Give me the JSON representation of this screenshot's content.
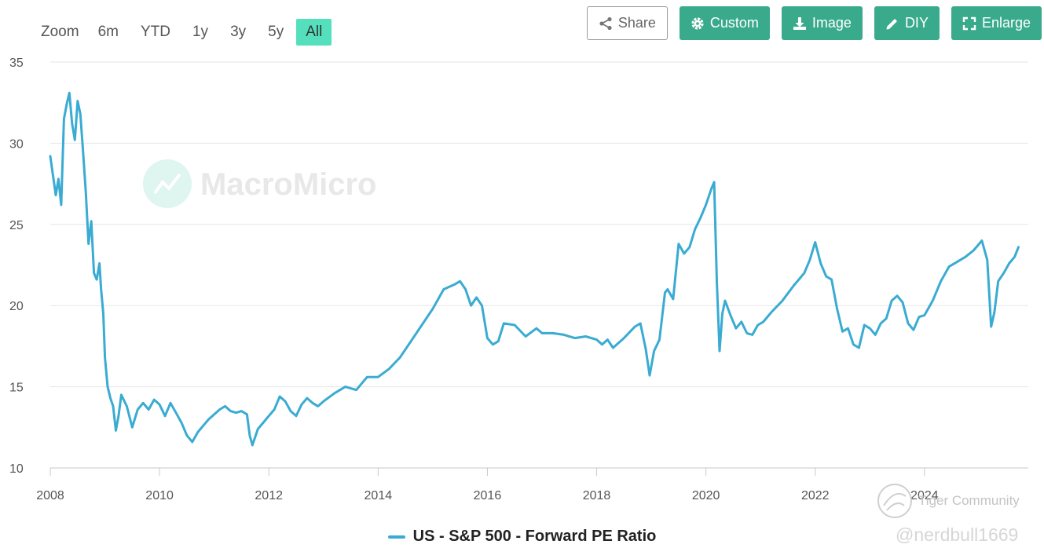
{
  "zoom": {
    "label": "Zoom",
    "buttons": [
      "6m",
      "YTD",
      "1y",
      "3y",
      "5y",
      "All"
    ],
    "active": "All"
  },
  "toolbar": {
    "share": "Share",
    "custom": "Custom",
    "image": "Image",
    "diy": "DIY",
    "enlarge": "Enlarge"
  },
  "watermark": {
    "brand": "MacroMicro",
    "community": "Tiger Community",
    "user": "@nerdbull1669"
  },
  "colors": {
    "line": "#3aabd2",
    "accent": "#55e0bd",
    "button": "#3aaa8c",
    "grid": "#e6e6e6"
  },
  "chart_data": {
    "type": "line",
    "title": "",
    "xlabel": "",
    "ylabel": "",
    "xlim": [
      2008.0,
      2025.9
    ],
    "ylim": [
      10,
      35
    ],
    "yticks": [
      10,
      15,
      20,
      25,
      30,
      35
    ],
    "xticks": [
      2008,
      2010,
      2012,
      2014,
      2016,
      2018,
      2020,
      2022,
      2024
    ],
    "grid": true,
    "legend_position": "bottom",
    "series": [
      {
        "name": "US - S&P 500 - Forward PE Ratio",
        "x": [
          2008.0,
          2008.05,
          2008.1,
          2008.15,
          2008.2,
          2008.25,
          2008.3,
          2008.35,
          2008.4,
          2008.45,
          2008.5,
          2008.55,
          2008.6,
          2008.65,
          2008.7,
          2008.75,
          2008.8,
          2008.85,
          2008.9,
          2008.93,
          2008.97,
          2009.0,
          2009.05,
          2009.1,
          2009.15,
          2009.2,
          2009.25,
          2009.3,
          2009.4,
          2009.5,
          2009.6,
          2009.7,
          2009.8,
          2009.9,
          2010.0,
          2010.1,
          2010.2,
          2010.3,
          2010.4,
          2010.5,
          2010.6,
          2010.7,
          2010.8,
          2010.9,
          2011.0,
          2011.1,
          2011.2,
          2011.3,
          2011.4,
          2011.5,
          2011.6,
          2011.65,
          2011.7,
          2011.8,
          2011.9,
          2012.0,
          2012.1,
          2012.2,
          2012.3,
          2012.4,
          2012.5,
          2012.6,
          2012.7,
          2012.8,
          2012.9,
          2013.0,
          2013.2,
          2013.4,
          2013.6,
          2013.8,
          2014.0,
          2014.2,
          2014.4,
          2014.6,
          2014.8,
          2015.0,
          2015.2,
          2015.4,
          2015.5,
          2015.6,
          2015.7,
          2015.8,
          2015.9,
          2016.0,
          2016.1,
          2016.2,
          2016.3,
          2016.5,
          2016.7,
          2016.9,
          2017.0,
          2017.2,
          2017.4,
          2017.6,
          2017.8,
          2018.0,
          2018.1,
          2018.2,
          2018.3,
          2018.5,
          2018.7,
          2018.8,
          2018.9,
          2018.97,
          2019.05,
          2019.15,
          2019.25,
          2019.3,
          2019.4,
          2019.5,
          2019.6,
          2019.7,
          2019.8,
          2019.9,
          2020.0,
          2020.1,
          2020.15,
          2020.2,
          2020.25,
          2020.3,
          2020.35,
          2020.45,
          2020.55,
          2020.65,
          2020.75,
          2020.85,
          2020.95,
          2021.05,
          2021.2,
          2021.4,
          2021.6,
          2021.8,
          2021.9,
          2022.0,
          2022.1,
          2022.2,
          2022.3,
          2022.4,
          2022.5,
          2022.6,
          2022.7,
          2022.8,
          2022.9,
          2023.0,
          2023.1,
          2023.2,
          2023.3,
          2023.4,
          2023.5,
          2023.6,
          2023.7,
          2023.8,
          2023.9,
          2024.0,
          2024.15,
          2024.3,
          2024.45,
          2024.6,
          2024.75,
          2024.9,
          2025.05,
          2025.15,
          2025.22,
          2025.28,
          2025.35,
          2025.45,
          2025.55,
          2025.65,
          2025.72
        ],
        "values": [
          29.2,
          28.0,
          26.8,
          27.8,
          26.2,
          31.5,
          32.4,
          33.1,
          31.2,
          30.2,
          32.6,
          31.8,
          29.5,
          27.0,
          23.8,
          25.2,
          22.0,
          21.6,
          22.6,
          21.0,
          19.5,
          16.8,
          15.0,
          14.3,
          13.8,
          12.3,
          13.2,
          14.5,
          13.8,
          12.5,
          13.6,
          14.0,
          13.6,
          14.2,
          13.9,
          13.2,
          14.0,
          13.4,
          12.8,
          12.0,
          11.6,
          12.2,
          12.6,
          13.0,
          13.3,
          13.6,
          13.8,
          13.5,
          13.4,
          13.5,
          13.3,
          12.0,
          11.4,
          12.4,
          12.8,
          13.2,
          13.6,
          14.4,
          14.1,
          13.5,
          13.2,
          13.9,
          14.3,
          14.0,
          13.8,
          14.1,
          14.6,
          15.0,
          14.8,
          15.6,
          15.6,
          16.1,
          16.8,
          17.8,
          18.8,
          19.8,
          21.0,
          21.3,
          21.5,
          21.0,
          20.0,
          20.5,
          20.0,
          18.0,
          17.6,
          17.8,
          18.9,
          18.8,
          18.1,
          18.6,
          18.3,
          18.3,
          18.2,
          18.0,
          18.1,
          17.9,
          17.6,
          17.9,
          17.4,
          18.0,
          18.7,
          18.9,
          17.3,
          15.7,
          17.2,
          17.9,
          20.8,
          21.0,
          20.4,
          23.8,
          23.2,
          23.6,
          24.7,
          25.4,
          26.2,
          27.2,
          27.6,
          21.5,
          17.2,
          19.5,
          20.3,
          19.4,
          18.6,
          19.0,
          18.3,
          18.2,
          18.8,
          19.0,
          19.6,
          20.3,
          21.2,
          22.0,
          22.8,
          23.9,
          22.6,
          21.8,
          21.6,
          19.8,
          18.4,
          18.6,
          17.6,
          17.4,
          18.8,
          18.6,
          18.2,
          18.9,
          19.2,
          20.3,
          20.6,
          20.2,
          18.9,
          18.5,
          19.3,
          19.4,
          20.3,
          21.5,
          22.4,
          22.7,
          23.0,
          23.4,
          24.0,
          22.8,
          18.7,
          19.6,
          21.5,
          22.0,
          22.6,
          23.0,
          23.6
        ]
      }
    ]
  }
}
